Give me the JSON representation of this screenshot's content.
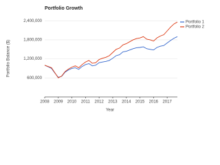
{
  "chart_data": {
    "type": "line",
    "title": "Portfolio Growth",
    "x_label": "Year",
    "y_label": "Portfolio Balance ($)",
    "x": [
      2008,
      2008.25,
      2008.5,
      2008.75,
      2009,
      2009.25,
      2009.5,
      2009.75,
      2010,
      2010.25,
      2010.5,
      2010.75,
      2011,
      2011.25,
      2011.5,
      2011.75,
      2012,
      2012.25,
      2012.5,
      2012.75,
      2013,
      2013.25,
      2013.5,
      2013.75,
      2014,
      2014.25,
      2014.5,
      2014.75,
      2015,
      2015.25,
      2015.5,
      2015.75,
      2016,
      2016.25,
      2016.5,
      2016.75,
      2017,
      2017.25,
      2017.5,
      2017.75
    ],
    "series": [
      {
        "name": "Portfolio 1",
        "color": "#3366cc",
        "values": [
          1000000,
          950000,
          900000,
          750000,
          620000,
          650000,
          780000,
          850000,
          900000,
          920000,
          870000,
          960000,
          1020000,
          1050000,
          980000,
          1000000,
          1080000,
          1100000,
          1120000,
          1150000,
          1220000,
          1300000,
          1330000,
          1420000,
          1440000,
          1480000,
          1520000,
          1550000,
          1560000,
          1580000,
          1520000,
          1500000,
          1480000,
          1560000,
          1600000,
          1620000,
          1700000,
          1780000,
          1850000,
          1900000
        ]
      },
      {
        "name": "Portfolio 2",
        "color": "#dc3912",
        "values": [
          1000000,
          960000,
          920000,
          760000,
          600000,
          660000,
          800000,
          880000,
          940000,
          980000,
          920000,
          1020000,
          1100000,
          1150000,
          1060000,
          1080000,
          1180000,
          1220000,
          1250000,
          1300000,
          1400000,
          1500000,
          1540000,
          1640000,
          1680000,
          1740000,
          1800000,
          1840000,
          1860000,
          1900000,
          1820000,
          1800000,
          1760000,
          1860000,
          1920000,
          1960000,
          2080000,
          2200000,
          2300000,
          2360000
        ]
      }
    ],
    "xlim": [
      2008,
      2017.75
    ],
    "xticks": [
      2008,
      2009,
      2010,
      2011,
      2012,
      2013,
      2014,
      2015,
      2016,
      2017
    ],
    "ylim": [
      0,
      2600000
    ],
    "yticks": [
      {
        "value": 600000,
        "label": "600,000"
      },
      {
        "value": 1200000,
        "label": "1,200,000"
      },
      {
        "value": 1800000,
        "label": "1,800,000"
      },
      {
        "value": 2400000,
        "label": "2,400,000"
      }
    ],
    "grid": true,
    "legend": "top-right"
  }
}
